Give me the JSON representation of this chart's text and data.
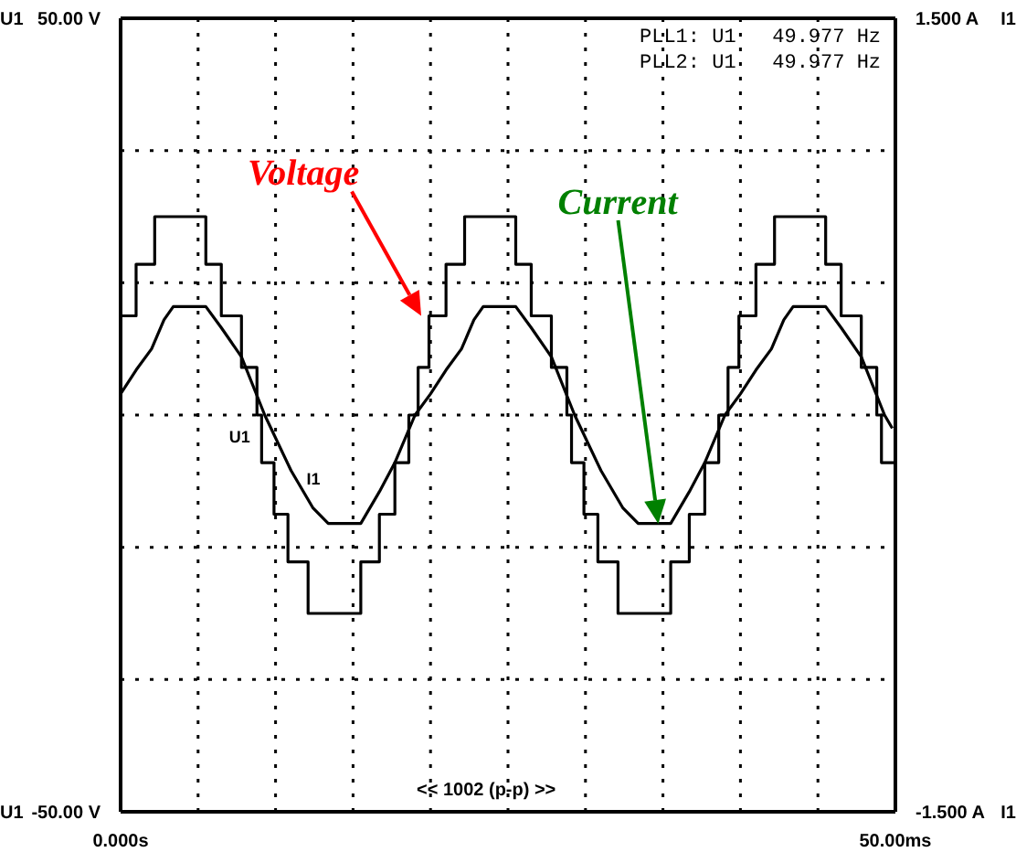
{
  "chart_data": {
    "type": "line",
    "series": [
      {
        "name": "U1",
        "type": "step",
        "color": "#000000",
        "axis": "y",
        "x": [
          0,
          1.0,
          2.2,
          5.5,
          6.5,
          7.8,
          8.8,
          9.1,
          9.9,
          10.8,
          12.1,
          15.5,
          16.7,
          17.7,
          18.6,
          19.2,
          19.9,
          21.0,
          22.2,
          25.5,
          26.5,
          27.8,
          28.8,
          29.1,
          29.9,
          30.8,
          32.1,
          35.5,
          36.7,
          37.7,
          38.6,
          39.2,
          39.9,
          41.0,
          42.2,
          45.5,
          46.5,
          47.8,
          48.8,
          49.1,
          50
        ],
        "values": [
          12.5,
          19,
          25,
          19,
          12.5,
          6,
          0,
          -6,
          -12.5,
          -18.5,
          -25,
          -18.5,
          -12.5,
          -6,
          0,
          6,
          12.5,
          19,
          25,
          19,
          12.5,
          6,
          0,
          -6,
          -12.5,
          -18.5,
          -25,
          -18.5,
          -12.5,
          -6,
          0,
          6,
          12.5,
          19,
          25,
          19,
          12.5,
          6,
          0,
          -6,
          -6
        ]
      },
      {
        "name": "I1",
        "type": "line",
        "color": "#000000",
        "axis": "y2",
        "x": [
          0,
          1,
          2,
          2.8,
          3.4,
          5.5,
          6.5,
          7.8,
          9.3,
          11,
          12.4,
          13.4,
          15.5,
          16.7,
          17.7,
          19,
          20,
          21,
          22,
          22.8,
          23.4,
          25.5,
          26.5,
          27.8,
          29.3,
          31,
          32.4,
          33.4,
          35.5,
          36.7,
          37.7,
          39,
          40,
          41,
          42,
          42.8,
          43.4,
          45.5,
          46.5,
          47.8,
          49.3,
          49.8
        ],
        "values": [
          0.08,
          0.17,
          0.25,
          0.36,
          0.41,
          0.41,
          0.33,
          0.22,
          0,
          -0.21,
          -0.35,
          -0.41,
          -0.41,
          -0.29,
          -0.18,
          0,
          0.08,
          0.17,
          0.25,
          0.36,
          0.41,
          0.41,
          0.33,
          0.22,
          0,
          -0.21,
          -0.35,
          -0.41,
          -0.41,
          -0.29,
          -0.18,
          0,
          0.08,
          0.17,
          0.25,
          0.36,
          0.41,
          0.41,
          0.33,
          0.22,
          0,
          -0.05
        ]
      }
    ],
    "xlim": [
      0,
      50
    ],
    "xticks": [
      {
        "value": 0,
        "label": "0.000s"
      },
      {
        "value": 5,
        "label": null
      },
      {
        "value": 10,
        "label": null
      },
      {
        "value": 15,
        "label": null
      },
      {
        "value": 20,
        "label": null
      },
      {
        "value": 25,
        "label": null
      },
      {
        "value": 30,
        "label": null
      },
      {
        "value": 35,
        "label": null
      },
      {
        "value": 40,
        "label": null
      },
      {
        "value": 45,
        "label": null
      },
      {
        "value": 50,
        "label": "50.00ms"
      }
    ],
    "ylim": [
      -50,
      50
    ],
    "yticks": [
      {
        "value": -50,
        "label": "-50.00 V"
      },
      {
        "value": -33.33,
        "label": null
      },
      {
        "value": -16.67,
        "label": null
      },
      {
        "value": 0,
        "label": null
      },
      {
        "value": 16.67,
        "label": null
      },
      {
        "value": 33.33,
        "label": null
      },
      {
        "value": 50,
        "label": "50.00 V"
      }
    ],
    "y2lim": [
      -1.5,
      1.5
    ],
    "y2ticks": [
      {
        "value": -1.5,
        "label": "-1.500 A"
      },
      {
        "value": 1.5,
        "label": "1.500 A"
      }
    ],
    "grid": true,
    "legend": false,
    "annotations": [
      "PLL1: U1   49.977 Hz",
      "PLL2: U1   49.977 Hz",
      "<< 1002 (p-p) >>",
      "Voltage",
      "Current"
    ]
  }
}
